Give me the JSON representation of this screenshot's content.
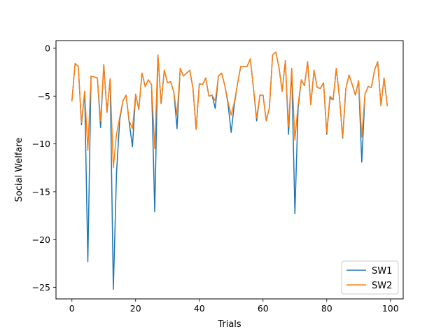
{
  "chart_data": {
    "type": "line",
    "title": "",
    "xlabel": "Trials",
    "ylabel": "Social Welfare",
    "xlim": [
      -5,
      104
    ],
    "ylim": [
      -26.2,
      0.8
    ],
    "xticks": [
      0,
      20,
      40,
      60,
      80,
      100
    ],
    "yticks": [
      0,
      -5,
      -10,
      -15,
      -20,
      -25
    ],
    "ytick_labels": [
      "0",
      "−5",
      "−10",
      "−15",
      "−20",
      "−25"
    ],
    "grid": false,
    "legend_position": "lower-right",
    "x": [
      0,
      1,
      2,
      3,
      4,
      5,
      6,
      7,
      8,
      9,
      10,
      11,
      12,
      13,
      14,
      15,
      16,
      17,
      18,
      19,
      20,
      21,
      22,
      23,
      24,
      25,
      26,
      27,
      28,
      29,
      30,
      31,
      32,
      33,
      34,
      35,
      36,
      37,
      38,
      39,
      40,
      41,
      42,
      43,
      44,
      45,
      46,
      47,
      48,
      49,
      50,
      51,
      52,
      53,
      54,
      55,
      56,
      57,
      58,
      59,
      60,
      61,
      62,
      63,
      64,
      65,
      66,
      67,
      68,
      69,
      70,
      71,
      72,
      73,
      74,
      75,
      76,
      77,
      78,
      79,
      80,
      81,
      82,
      83,
      84,
      85,
      86,
      87,
      88,
      89,
      90,
      91,
      92,
      93,
      94,
      95,
      96,
      97,
      98,
      99
    ],
    "series": [
      {
        "name": "SW1",
        "color": "#1f77b4",
        "values": [
          -5.5,
          -1.6,
          -1.9,
          -8.0,
          -4.5,
          -22.3,
          -2.9,
          -3.0,
          -3.1,
          -8.3,
          -1.7,
          -6.7,
          -3.2,
          -25.2,
          -13.0,
          -7.5,
          -5.5,
          -4.9,
          -7.8,
          -10.3,
          -4.8,
          -6.4,
          -2.6,
          -4.0,
          -3.3,
          -3.8,
          -17.1,
          -0.7,
          -5.8,
          -2.3,
          -3.6,
          -3.5,
          -4.6,
          -8.4,
          -2.1,
          -2.9,
          -2.6,
          -2.3,
          -4.2,
          -8.5,
          -3.7,
          -3.8,
          -3.1,
          -5.0,
          -4.9,
          -6.3,
          -2.9,
          -2.6,
          -3.9,
          -5.8,
          -8.8,
          -5.8,
          -3.7,
          -1.9,
          -1.9,
          -1.9,
          -1.1,
          -4.2,
          -7.6,
          -4.9,
          -4.9,
          -7.6,
          -6.2,
          -0.7,
          -0.4,
          -2.0,
          -4.5,
          -1.3,
          -9.0,
          -2.1,
          -17.3,
          -6.3,
          -3.3,
          -3.9,
          -1.4,
          -5.9,
          -2.3,
          -4.1,
          -4.2,
          -3.6,
          -9.0,
          -5.2,
          -5.4,
          -2.1,
          -5.2,
          -9.4,
          -4.2,
          -2.8,
          -3.8,
          -4.9,
          -3.4,
          -11.9,
          -4.8,
          -4.0,
          -4.1,
          -2.3,
          -1.4,
          -6.0,
          -3.1,
          -6.0
        ]
      },
      {
        "name": "SW2",
        "color": "#ff7f0e",
        "values": [
          -5.5,
          -1.6,
          -1.9,
          -7.8,
          -4.5,
          -10.7,
          -2.9,
          -3.0,
          -3.1,
          -7.6,
          -1.7,
          -6.7,
          -3.2,
          -12.5,
          -9.0,
          -7.2,
          -5.5,
          -4.9,
          -7.6,
          -8.4,
          -4.8,
          -6.4,
          -2.6,
          -4.0,
          -3.3,
          -3.8,
          -10.5,
          -0.7,
          -5.8,
          -2.3,
          -3.6,
          -3.5,
          -4.6,
          -7.0,
          -2.1,
          -2.9,
          -2.6,
          -2.3,
          -4.2,
          -8.5,
          -3.7,
          -3.8,
          -3.1,
          -5.0,
          -4.9,
          -5.5,
          -2.9,
          -2.6,
          -3.9,
          -5.6,
          -7.0,
          -5.6,
          -3.7,
          -1.9,
          -1.9,
          -1.9,
          -1.1,
          -4.2,
          -7.3,
          -4.9,
          -4.9,
          -7.6,
          -6.2,
          -0.7,
          -0.4,
          -2.0,
          -4.5,
          -1.3,
          -8.2,
          -2.1,
          -9.6,
          -5.9,
          -3.3,
          -3.9,
          -1.4,
          -5.9,
          -2.3,
          -4.1,
          -4.2,
          -3.6,
          -8.8,
          -5.0,
          -5.4,
          -2.1,
          -5.2,
          -9.3,
          -4.2,
          -2.8,
          -3.8,
          -4.9,
          -3.4,
          -9.3,
          -4.8,
          -4.0,
          -4.1,
          -2.3,
          -1.4,
          -6.0,
          -3.1,
          -6.0
        ]
      }
    ]
  }
}
